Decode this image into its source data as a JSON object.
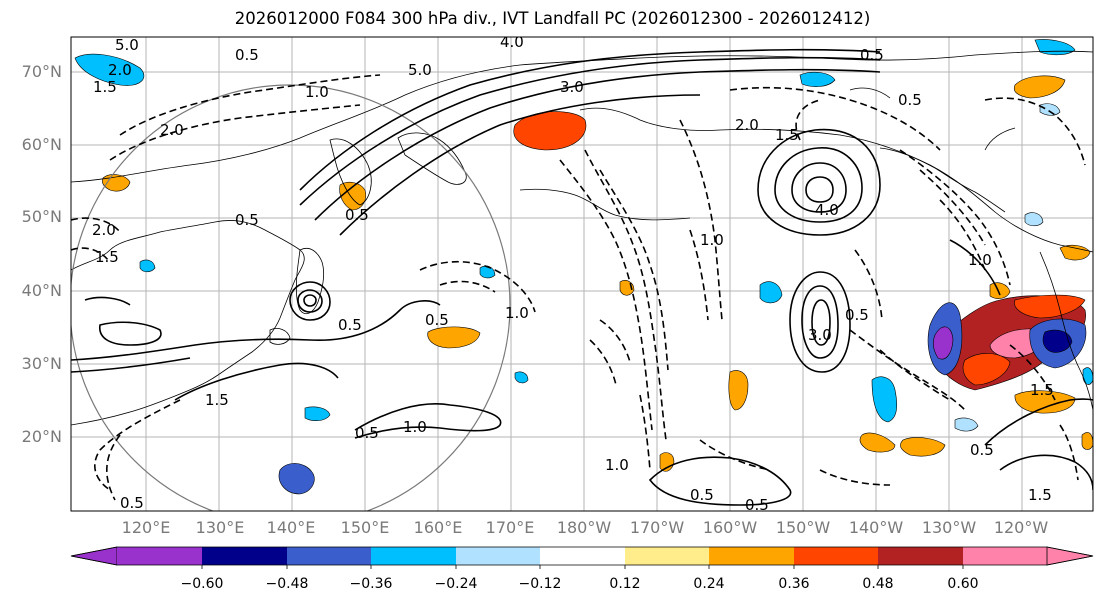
{
  "title": "2026012000 F084 300 hPa div., IVT Landfall PC (2026012300 - 2026012412)",
  "lat_labels": [
    "70°N",
    "60°N",
    "50°N",
    "40°N",
    "30°N",
    "20°N"
  ],
  "lon_labels": [
    "120°E",
    "130°E",
    "140°E",
    "150°E",
    "160°E",
    "170°E",
    "180°W",
    "170°W",
    "160°W",
    "150°W",
    "140°W",
    "130°W",
    "120°W"
  ],
  "colorbar": {
    "ticks": [
      "−0.60",
      "−0.48",
      "−0.36",
      "−0.24",
      "−0.12",
      "0.12",
      "0.24",
      "0.36",
      "0.48",
      "0.60"
    ],
    "colors": [
      "#9932cc",
      "#00008b",
      "#3a5fcd",
      "#00bfff",
      "#b0e2ff",
      "#ffffff",
      "#ffec8b",
      "#ffa500",
      "#ff4500",
      "#b22222",
      "#ff82ab"
    ]
  },
  "contour_labels": [
    "5.0",
    "2.0",
    "1.5",
    "0.5",
    "1.0",
    "2.0",
    "4.0",
    "5.0",
    "3.0",
    "2.0",
    "1.5",
    "0.5",
    "0.5",
    "0.5",
    "2.0",
    "1.5",
    "4.0",
    "1.0",
    "0.5",
    "1.0",
    "0.5",
    "0.5",
    "3.0",
    "0.5",
    "1.5",
    "1.0",
    "0.5",
    "1.0",
    "1.5",
    "0.5",
    "0.5",
    "1.0",
    "1.5",
    "0.5",
    "0.5"
  ],
  "map_colors": {
    "pos_orange": "#ffa500",
    "pos_red": "#ff4500",
    "pos_dark_red": "#b22222",
    "pos_pink": "#ff82ab",
    "neg_light": "#b0e2ff",
    "neg_cyan": "#00bfff",
    "neg_blue": "#3a5fcd",
    "neg_navy": "#00008b",
    "neg_purple": "#9932cc"
  }
}
